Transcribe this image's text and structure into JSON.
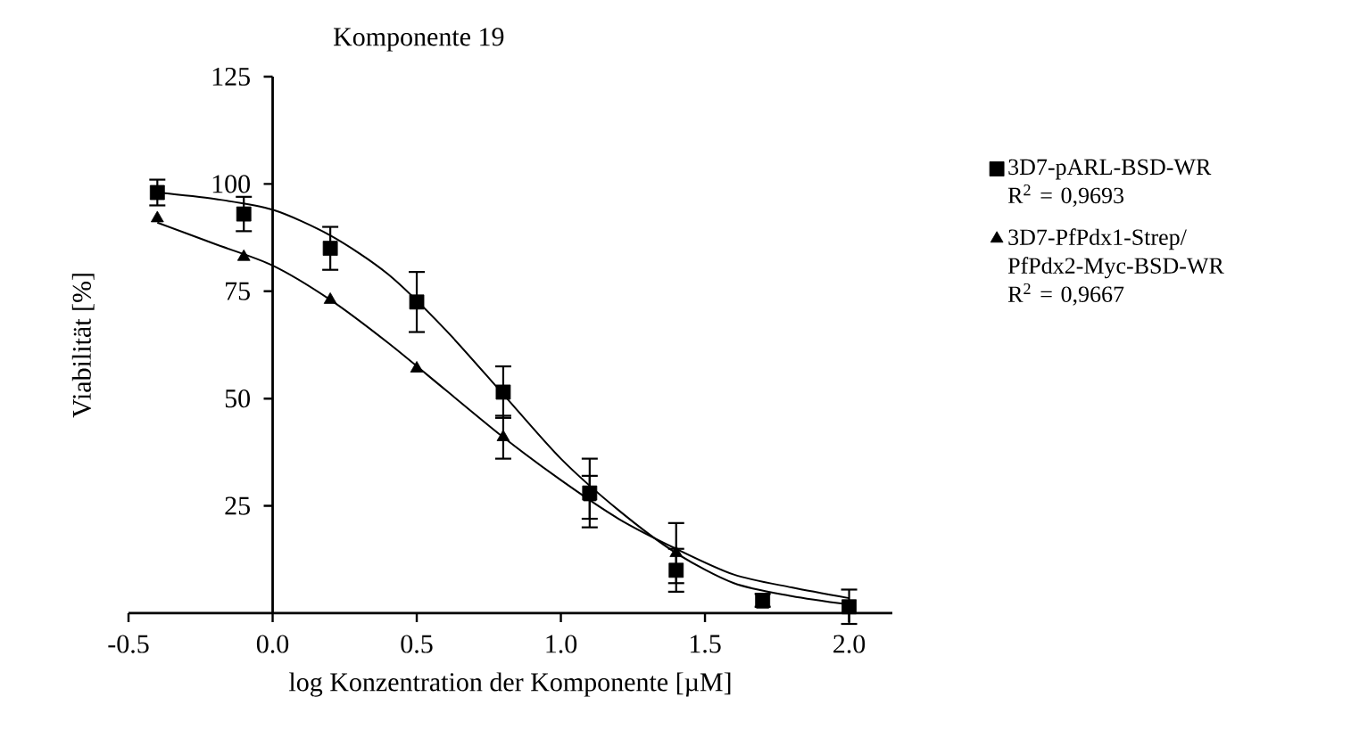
{
  "chart_data": {
    "type": "scatter",
    "title": "Komponente 19",
    "xlabel": "log Konzentration der Komponente [µM]",
    "ylabel": "Viabilität [%]",
    "x": [
      -0.4,
      -0.1,
      0.2,
      0.5,
      0.8,
      1.1,
      1.4,
      1.7,
      2.0
    ],
    "series": [
      {
        "name": "3D7-pARL-BSD-WR R$^{2}$ = 0,9693",
        "type": "scatter",
        "marker": "square",
        "color": "#000000",
        "values": [
          98,
          93,
          85,
          72.5,
          51.5,
          28,
          10,
          3,
          1.5
        ],
        "errors": [
          3,
          4,
          5,
          7,
          6,
          8,
          5,
          1.5,
          4
        ]
      },
      {
        "name": "3D7-PfPdx1-Strep/ PfPdx2-Myc-BSD-WR R$^{2}$ = 0,9667",
        "type": "scatter",
        "marker": "triangle",
        "color": "#000000",
        "values": [
          92,
          83,
          73,
          57,
          41,
          27,
          14,
          2,
          null
        ],
        "errors": [
          null,
          null,
          null,
          null,
          5,
          5,
          7,
          null,
          null
        ]
      },
      {
        "type": "line",
        "marker": "none",
        "color": "#000000",
        "x": [
          -0.4,
          -0.2,
          0.0,
          0.2,
          0.4,
          0.6,
          0.8,
          1.0,
          1.2,
          1.4,
          1.6,
          1.8,
          2.0
        ],
        "values": [
          98,
          96.5,
          94,
          88,
          79,
          66,
          51,
          36,
          24,
          14,
          7,
          4,
          2
        ]
      },
      {
        "type": "line",
        "marker": "none",
        "color": "#000000",
        "x": [
          -0.4,
          -0.2,
          0.0,
          0.2,
          0.4,
          0.6,
          0.8,
          1.0,
          1.2,
          1.4,
          1.6,
          1.8,
          2.0
        ],
        "values": [
          91,
          86,
          81,
          73,
          63,
          52,
          41,
          31,
          22,
          15,
          9,
          6,
          3.5
        ]
      }
    ],
    "xlim": [
      -0.5,
      2.15
    ],
    "ylim": [
      0,
      125
    ],
    "xticks": [
      {
        "value": -0.5,
        "label": "-0.5"
      },
      {
        "value": 0,
        "label": "0.0"
      },
      {
        "value": 0.5,
        "label": "0.5"
      },
      {
        "value": 1,
        "label": "1.0"
      },
      {
        "value": 1.5,
        "label": "1.5"
      },
      {
        "value": 2,
        "label": "2.0"
      }
    ],
    "yticks": [
      {
        "value": 25,
        "label": "25"
      },
      50,
      75,
      100,
      125
    ],
    "legend": "right",
    "grid": false
  }
}
